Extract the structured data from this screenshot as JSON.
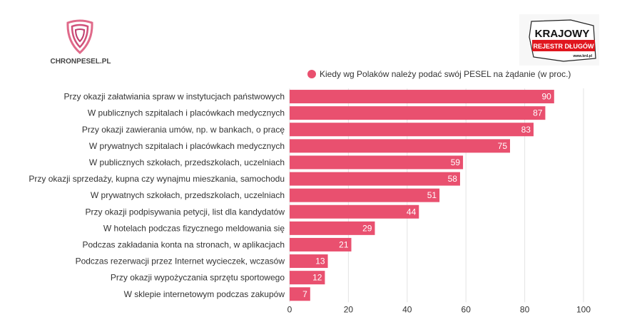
{
  "logos": {
    "left": "CHRONPESEL.PL",
    "right_line1": "KRAJOWY",
    "right_line2": "REJESTR DŁUGÓW",
    "right_url": "www.krd.pl"
  },
  "colors": {
    "bar": "#e9506f",
    "grid": "#e3e3e3",
    "text": "#333333"
  },
  "chart_data": {
    "type": "bar",
    "orientation": "horizontal",
    "legend": "Kiedy wg Polaków należy podać swój PESEL na żądanie (w proc.)",
    "legend_position": "top-right",
    "categories": [
      "Przy okazji załatwiania spraw w instytucjach państwowych",
      "W publicznych szpitalach i placówkach medycznych",
      "Przy okazji zawierania umów, np. w bankach, o pracę",
      "W prywatnych szpitalach i placówkach medycznych",
      "W publicznych szkołach, przedszkolach, uczelniach",
      "Przy okazji sprzedaży, kupna czy wynajmu mieszkania, samochodu",
      "W prywatnych szkołach, przedszkolach, uczelniach",
      "Przy okazji podpisywania petycji, list dla kandydatów",
      "W hotelach podczas fizycznego meldowania się",
      "Podczas zakładania konta na stronach, w aplikacjach",
      "Podczas rezerwacji przez Internet wycieczek, wczasów",
      "Przy okazji wypożyczania sprzętu sportowego",
      "W sklepie internetowym podczas zakupów"
    ],
    "values": [
      90,
      87,
      83,
      75,
      59,
      58,
      51,
      44,
      29,
      21,
      13,
      12,
      7
    ],
    "xlim": [
      0,
      100
    ],
    "xticks": [
      0,
      20,
      40,
      60,
      80,
      100
    ],
    "grid": true
  }
}
